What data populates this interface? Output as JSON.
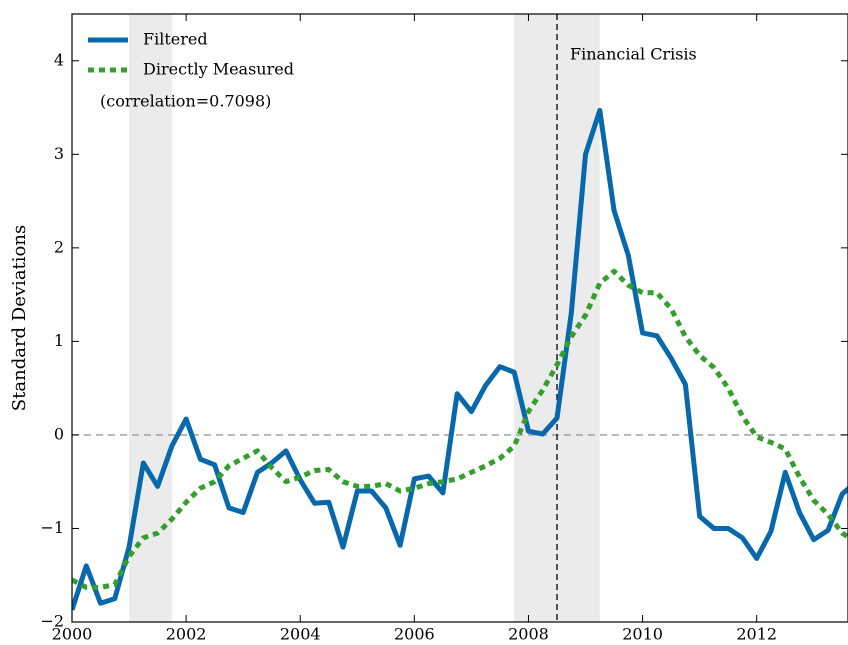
{
  "chart_data": {
    "type": "line",
    "y_label": "Standard Deviations",
    "annotations": [
      "(correlation=0.7098)",
      "Financial Crisis"
    ],
    "crisis_x": 2008.5,
    "zero_line": 0,
    "shaded_spans": [
      [
        2001,
        2001.75
      ],
      [
        2007.75,
        2009.25
      ]
    ],
    "xlim": [
      2000,
      2013.6
    ],
    "xticks": [
      2000,
      2002,
      2004,
      2006,
      2008,
      2010,
      2012
    ],
    "ylim": [
      -2,
      4.5
    ],
    "yticks": [
      {
        "value": -2,
        "label": "−2"
      },
      {
        "value": -1,
        "label": "−1"
      },
      0,
      1,
      2,
      3,
      4
    ],
    "legend": "upper left",
    "x": [
      2000,
      2000.25,
      2000.5,
      2000.75,
      2001,
      2001.25,
      2001.5,
      2001.75,
      2002,
      2002.25,
      2002.5,
      2002.75,
      2003,
      2003.25,
      2003.5,
      2003.75,
      2004,
      2004.25,
      2004.5,
      2004.75,
      2005,
      2005.25,
      2005.5,
      2005.75,
      2006,
      2006.25,
      2006.5,
      2006.75,
      2007,
      2007.25,
      2007.5,
      2007.75,
      2008,
      2008.25,
      2008.5,
      2008.75,
      2009,
      2009.25,
      2009.5,
      2009.75,
      2010,
      2010.25,
      2010.5,
      2010.75,
      2011,
      2011.25,
      2011.5,
      2011.75,
      2012,
      2012.25,
      2012.5,
      2012.75,
      2013,
      2013.25,
      2013.5,
      2013.75
    ],
    "series": [
      {
        "name": "Filtered",
        "color": "#0868ac",
        "style": "solid",
        "values": [
          -1.87,
          -1.4,
          -1.8,
          -1.75,
          -1.2,
          -0.3,
          -0.55,
          -0.12,
          0.17,
          -0.26,
          -0.32,
          -0.78,
          -0.83,
          -0.4,
          -0.3,
          -0.17,
          -0.48,
          -0.73,
          -0.72,
          -1.2,
          -0.6,
          -0.6,
          -0.78,
          -1.18,
          -0.47,
          -0.44,
          -0.62,
          0.44,
          0.25,
          0.53,
          0.73,
          0.67,
          0.04,
          0.01,
          0.18,
          1.3,
          3.0,
          3.47,
          2.4,
          1.92,
          1.09,
          1.06,
          0.82,
          0.54,
          -0.87,
          -1.0,
          -1.0,
          -1.1,
          -1.32,
          -1.03,
          -0.4,
          -0.83,
          -1.12,
          -1.02,
          -0.63,
          -0.5
        ]
      },
      {
        "name": "Directly Measured",
        "color": "#33a02c",
        "style": "dotted",
        "values": [
          -1.55,
          -1.63,
          -1.63,
          -1.6,
          -1.3,
          -1.1,
          -1.05,
          -0.9,
          -0.72,
          -0.57,
          -0.5,
          -0.33,
          -0.25,
          -0.17,
          -0.35,
          -0.5,
          -0.45,
          -0.38,
          -0.37,
          -0.5,
          -0.55,
          -0.55,
          -0.52,
          -0.6,
          -0.57,
          -0.52,
          -0.5,
          -0.47,
          -0.4,
          -0.33,
          -0.25,
          -0.12,
          0.25,
          0.48,
          0.75,
          1.05,
          1.28,
          1.62,
          1.75,
          1.6,
          1.52,
          1.52,
          1.35,
          1.05,
          0.85,
          0.72,
          0.5,
          0.2,
          -0.02,
          -0.08,
          -0.15,
          -0.45,
          -0.7,
          -0.85,
          -1.05,
          -1.15
        ]
      }
    ]
  }
}
